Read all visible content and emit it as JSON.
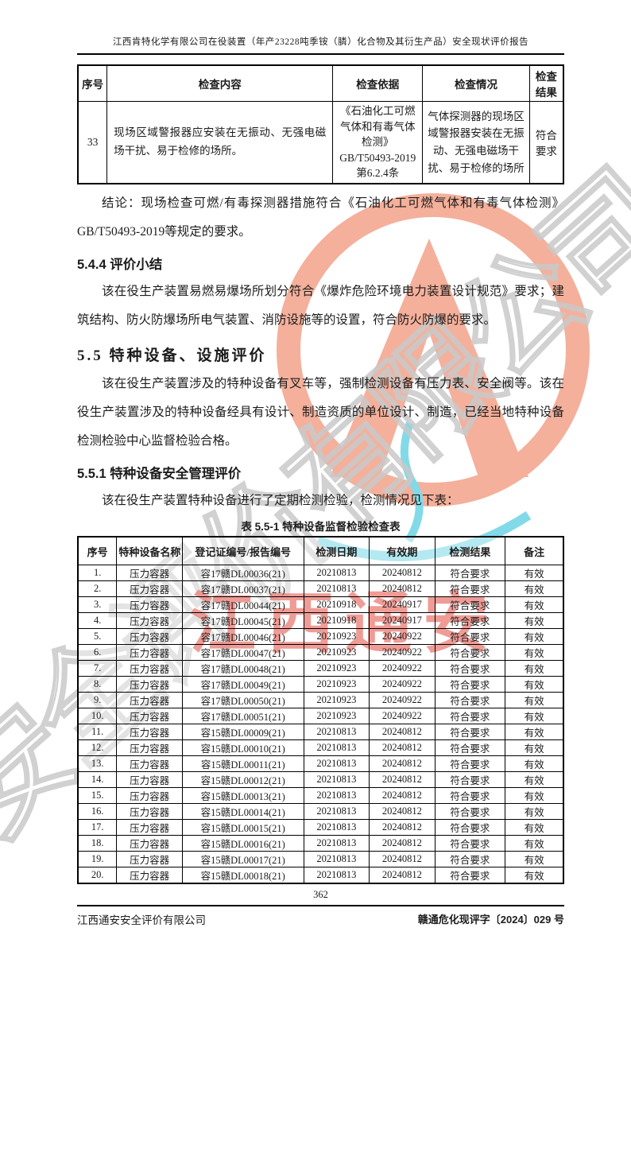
{
  "page": {
    "header_title": "江西肯特化学有限公司在役装置（年产23228吨季铵（膦）化合物及其衍生产品）安全现状评价报告",
    "page_number": "362",
    "footer_left": "江西通安安全评价有限公司",
    "footer_right": "赣通危化现评字〔2024〕029 号"
  },
  "check_table": {
    "headers": [
      "序号",
      "检查内容",
      "检查依据",
      "检查情况",
      "检查结果"
    ],
    "rows": [
      {
        "no": "33",
        "content": "现场区域警报器应安装在无振动、无强电磁场干扰、易于检修的场所。",
        "basis": "《石油化工可燃气体和有毒气体检测》\nGB/T50493-2019\n第6.2.4条",
        "situation": "气体探测器的现场区域警报器安装在无振动、无强电磁场干扰、易于检修的场所",
        "result": "符合要求"
      }
    ]
  },
  "sections": {
    "conclusion": "结论：现场检查可燃/有毒探测器措施符合《石油化工可燃气体和有毒气体检测》GB/T50493-2019等规定的要求。",
    "s544_title": "5.4.4 评价小结",
    "s544_body": "该在役生产装置易燃易爆场所划分符合《爆炸危险环境电力装置设计规范》要求；建筑结构、防火防爆场所电气装置、消防设施等的设置，符合防火防爆的要求。",
    "s55_title": "5.5 特种设备、设施评价",
    "s55_body": "该在役生产装置涉及的特种设备有叉车等，强制检测设备有压力表、安全阀等。该在役生产装置涉及的特种设备经具有设计、制造资质的单位设计、制造，已经当地特种设备检测检验中心监督检验合格。",
    "s551_title": "5.5.1 特种设备安全管理评价",
    "s551_body": "该在役生产装置特种设备进行了定期检测检验，检测情况见下表：",
    "table_caption": "表 5.5-1  特种设备监督检验检查表"
  },
  "equipment_table": {
    "headers": [
      "序号",
      "特种设备名称",
      "登记证编号/报告编号",
      "检测日期",
      "有效期",
      "检测结果",
      "备注"
    ],
    "rows": [
      [
        "1.",
        "压力容器",
        "容17赣DL00036(21)",
        "20210813",
        "20240812",
        "符合要求",
        "有效"
      ],
      [
        "2.",
        "压力容器",
        "容17赣DL00037(21)",
        "20210813",
        "20240812",
        "符合要求",
        "有效"
      ],
      [
        "3.",
        "压力容器",
        "容17赣DL00044(21)",
        "20210918",
        "20240917",
        "符合要求",
        "有效"
      ],
      [
        "4.",
        "压力容器",
        "容17赣DL00045(21)",
        "20210918",
        "20240917",
        "符合要求",
        "有效"
      ],
      [
        "5.",
        "压力容器",
        "容17赣DL00046(21)",
        "20210923",
        "20240922",
        "符合要求",
        "有效"
      ],
      [
        "6.",
        "压力容器",
        "容17赣DL00047(21)",
        "20210923",
        "20240922",
        "符合要求",
        "有效"
      ],
      [
        "7.",
        "压力容器",
        "容17赣DL00048(21)",
        "20210923",
        "20240922",
        "符合要求",
        "有效"
      ],
      [
        "8.",
        "压力容器",
        "容17赣DL00049(21)",
        "20210923",
        "20240922",
        "符合要求",
        "有效"
      ],
      [
        "9.",
        "压力容器",
        "容17赣DL00050(21)",
        "20210923",
        "20240922",
        "符合要求",
        "有效"
      ],
      [
        "10.",
        "压力容器",
        "容17赣DL00051(21)",
        "20210923",
        "20240922",
        "符合要求",
        "有效"
      ],
      [
        "11.",
        "压力容器",
        "容15赣DL00009(21)",
        "20210813",
        "20240812",
        "符合要求",
        "有效"
      ],
      [
        "12.",
        "压力容器",
        "容15赣DL00010(21)",
        "20210813",
        "20240812",
        "符合要求",
        "有效"
      ],
      [
        "13.",
        "压力容器",
        "容15赣DL00011(21)",
        "20210813",
        "20240812",
        "符合要求",
        "有效"
      ],
      [
        "14.",
        "压力容器",
        "容15赣DL00012(21)",
        "20210813",
        "20240812",
        "符合要求",
        "有效"
      ],
      [
        "15.",
        "压力容器",
        "容15赣DL00013(21)",
        "20210813",
        "20240812",
        "符合要求",
        "有效"
      ],
      [
        "16.",
        "压力容器",
        "容15赣DL00014(21)",
        "20210813",
        "20240812",
        "符合要求",
        "有效"
      ],
      [
        "17.",
        "压力容器",
        "容15赣DL00015(21)",
        "20210813",
        "20240812",
        "符合要求",
        "有效"
      ],
      [
        "18.",
        "压力容器",
        "容15赣DL00016(21)",
        "20210813",
        "20240812",
        "符合要求",
        "有效"
      ],
      [
        "19.",
        "压力容器",
        "容15赣DL00017(21)",
        "20210813",
        "20240812",
        "符合要求",
        "有效"
      ],
      [
        "20.",
        "压力容器",
        "容15赣DL00018(21)",
        "20210813",
        "20240812",
        "符合要求",
        "有效"
      ]
    ]
  },
  "watermark": {
    "diagonal_text": "江西通安安全评价有限公司",
    "stamp_text": "江西通安",
    "logo_color": "#f29b80",
    "logo_accent_color": "#5fd0e2",
    "stamp_color": "#df3226",
    "outline_color": "#c9c9c9"
  }
}
